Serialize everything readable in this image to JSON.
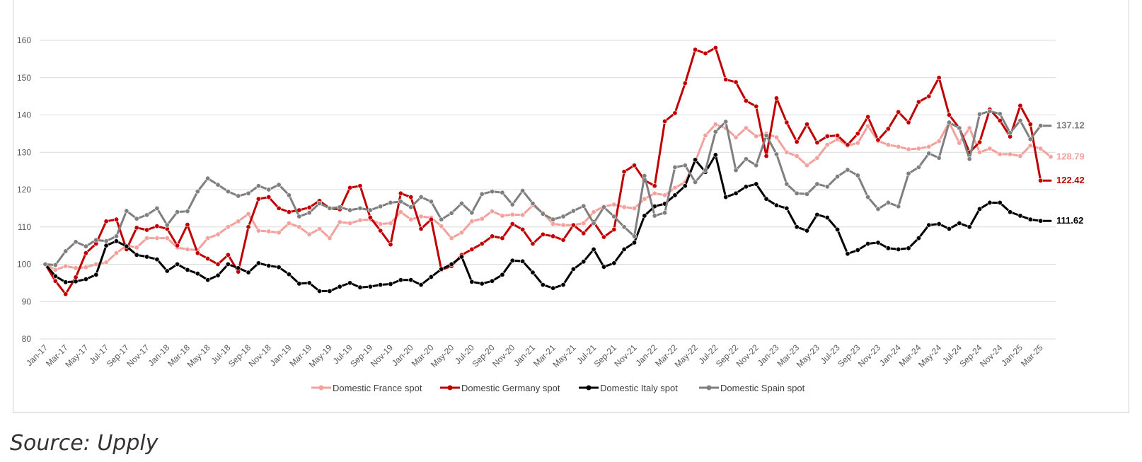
{
  "chart_data": {
    "type": "line",
    "title": "",
    "xlabel": "",
    "ylabel": "",
    "ylim": [
      80,
      160
    ],
    "yticks": [
      80,
      90,
      100,
      110,
      120,
      130,
      140,
      150,
      160
    ],
    "grid": "horizontal",
    "legend_position": "bottom",
    "x_tick_labels": [
      "Jan-17",
      "Mar-17",
      "May-17",
      "Jul-17",
      "Sep-17",
      "Nov-17",
      "Jan-18",
      "Mar-18",
      "May-18",
      "Jul-18",
      "Sep-18",
      "Nov-18",
      "Jan-19",
      "Mar-19",
      "May-19",
      "Jul-19",
      "Sep-19",
      "Nov-19",
      "Jan-20",
      "Mar-20",
      "May-20",
      "Jul-20",
      "Sep-20",
      "Nov-20",
      "Jan-21",
      "Mar-21",
      "May-21",
      "Jul-21",
      "Sep-21",
      "Nov-21",
      "Jan-22",
      "Mar-22",
      "May-22",
      "Jul-22",
      "Sep-22",
      "Nov-22",
      "Jan-23",
      "Mar-23",
      "May-23",
      "Jul-23",
      "Sep-23",
      "Nov-23",
      "Jan-24",
      "Mar-24",
      "May-24",
      "Jul-24",
      "Sep-24",
      "Nov-24",
      "Jan-25",
      "Mar-25"
    ],
    "series": [
      {
        "name": "Domestic France spot",
        "color": "#f4a09c",
        "end_label": "128.79",
        "values": [
          100,
          98.5,
          99.5,
          99,
          99.2,
          100,
          100.5,
          103,
          105,
          104.5,
          107,
          107,
          107,
          104.5,
          104,
          103.8,
          107,
          108,
          110,
          111.5,
          113.5,
          109,
          108.8,
          108.5,
          111,
          110,
          108,
          109.5,
          107,
          111.3,
          111,
          111.8,
          112,
          110.8,
          111,
          114,
          112,
          112.8,
          112.5,
          110.2,
          107,
          108.5,
          111.5,
          112.2,
          114.2,
          113,
          113.3,
          113.2,
          115.8,
          113.8,
          110.8,
          110.5,
          110.5,
          111,
          114,
          115.5,
          116,
          115.3,
          115,
          117.5,
          119,
          118.5,
          120.5,
          122,
          127.5,
          134.5,
          137.5,
          136.5,
          134,
          136.5,
          134.3,
          135,
          134,
          130,
          129,
          126.5,
          128.5,
          132,
          133.5,
          131.8,
          132.5,
          137,
          133,
          132,
          131.5,
          130.8,
          131,
          131.5,
          133,
          138,
          132.5,
          136.5,
          130,
          131,
          129.5,
          129.5,
          129,
          131.8,
          131,
          128.79
        ]
      },
      {
        "name": "Domestic Germany spot",
        "color": "#c00000",
        "end_label": "122.42",
        "values": [
          100,
          95.5,
          92,
          96.5,
          103,
          105.5,
          111.5,
          112,
          104,
          109.8,
          109.2,
          110.2,
          109.5,
          105,
          110.6,
          103,
          101.5,
          100,
          102.5,
          98,
          110,
          117.5,
          118,
          115,
          114,
          114.5,
          115.2,
          117,
          115,
          114.7,
          120.5,
          121,
          112.5,
          109,
          105.3,
          119,
          118,
          109.5,
          112,
          98.5,
          99.5,
          102.5,
          104,
          105.5,
          107.5,
          107,
          110.8,
          109.3,
          105.5,
          108,
          107.5,
          106.5,
          110.5,
          108.3,
          111.3,
          107.3,
          109.3,
          124.8,
          126.5,
          122.5,
          121,
          138.3,
          140.5,
          148.5,
          157.5,
          156.5,
          158,
          149.5,
          148.8,
          143.8,
          142.3,
          129,
          144.5,
          138,
          132.8,
          137.5,
          132.6,
          134.3,
          134.5,
          132,
          135,
          139.5,
          133.3,
          136.3,
          140.8,
          138,
          143.5,
          145,
          150,
          140,
          136.5,
          130,
          132.7,
          141.5,
          138.5,
          134.2,
          142.5,
          137.5,
          122.42,
          122.42
        ]
      },
      {
        "name": "Domestic Italy spot",
        "color": "#000000",
        "end_label": "111.62",
        "values": [
          100,
          96.8,
          95.2,
          95.4,
          96,
          97.2,
          105,
          106.2,
          104.8,
          102.5,
          102,
          101.3,
          98.2,
          100,
          98.5,
          97.5,
          95.8,
          97,
          100,
          99,
          97.8,
          100.3,
          99.6,
          99.2,
          97.3,
          94.8,
          95,
          92.8,
          92.8,
          94,
          95,
          93.8,
          94,
          94.5,
          94.7,
          95.8,
          95.8,
          94.5,
          96.6,
          98.7,
          100,
          102,
          95.3,
          94.8,
          95.5,
          97.2,
          101,
          100.8,
          97.8,
          94.5,
          93.6,
          94.5,
          98.7,
          100.7,
          104,
          99.3,
          100.3,
          104,
          105.8,
          113,
          115.5,
          116.2,
          118.5,
          121,
          128,
          124.7,
          129.3,
          118,
          119,
          120.8,
          121.5,
          117.5,
          115.8,
          115,
          110,
          109,
          113.3,
          112.5,
          109.3,
          102.8,
          103.8,
          105.5,
          105.8,
          104.3,
          104,
          104.3,
          107,
          110.5,
          110.8,
          109.5,
          111,
          110,
          114.8,
          116.5,
          116.5,
          114,
          113,
          112,
          111.62,
          111.62
        ]
      },
      {
        "name": "Domestic Spain spot",
        "color": "#7f7f7f",
        "end_label": "137.12",
        "values": [
          100,
          99.8,
          103.5,
          106,
          104.8,
          106.5,
          106.2,
          107.5,
          114.3,
          112.2,
          113.2,
          115,
          110.5,
          114,
          114.2,
          119.5,
          123,
          121.3,
          119.5,
          118.3,
          119,
          121,
          120,
          121.3,
          118.5,
          112.8,
          113.8,
          116.3,
          115,
          115.3,
          114.5,
          115,
          114.5,
          115.5,
          116.5,
          116.8,
          115.3,
          118,
          116.8,
          112,
          113.7,
          116.3,
          113.8,
          118.8,
          119.5,
          119.2,
          116,
          119.7,
          116.3,
          113.5,
          112,
          112.8,
          114.3,
          115.6,
          111,
          115.3,
          112.8,
          110,
          107.5,
          123.7,
          113,
          113.8,
          126,
          126.5,
          122,
          125.2,
          135.5,
          138.2,
          125.2,
          128.2,
          126.5,
          134.5,
          129.5,
          121.5,
          119,
          118.8,
          121.5,
          120.8,
          123.5,
          125.3,
          123.8,
          118,
          114.8,
          116.5,
          115.5,
          124.3,
          126,
          129.7,
          128.5,
          138,
          136.5,
          128.2,
          140.2,
          141,
          140.3,
          135.2,
          138.5,
          133.5,
          137.12,
          137.12
        ]
      }
    ]
  },
  "legend": [
    {
      "label": "Domestic France spot",
      "color": "#f4a09c"
    },
    {
      "label": "Domestic Germany spot",
      "color": "#c00000"
    },
    {
      "label": "Domestic Italy spot",
      "color": "#000000"
    },
    {
      "label": "Domestic Spain spot",
      "color": "#7f7f7f"
    }
  ],
  "source_text": "Source: Upply"
}
